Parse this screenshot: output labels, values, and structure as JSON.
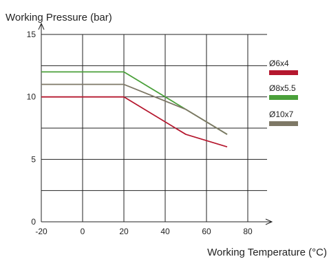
{
  "chart_data": {
    "type": "line",
    "ylabel": "Working Pressure (bar)",
    "xlabel": "Working Temperature (°C)",
    "xlim": [
      -20,
      80
    ],
    "ylim": [
      0,
      15
    ],
    "x_ticks": [
      -20,
      0,
      20,
      40,
      60,
      80
    ],
    "y_ticks": [
      0,
      5,
      10,
      15
    ],
    "grid": true,
    "legend_position": "right",
    "series": [
      {
        "name": "Ø6x4",
        "color": "#b5172e",
        "x": [
          -20,
          20,
          50,
          70
        ],
        "y": [
          10,
          10,
          7,
          6
        ]
      },
      {
        "name": "Ø8x5.5",
        "color": "#4aa03a",
        "x": [
          -20,
          20,
          70
        ],
        "y": [
          12,
          12,
          7
        ]
      },
      {
        "name": "Ø10x7",
        "color": "#7e7866",
        "x": [
          -20,
          20,
          50,
          70
        ],
        "y": [
          11,
          11,
          9,
          7
        ]
      }
    ]
  }
}
